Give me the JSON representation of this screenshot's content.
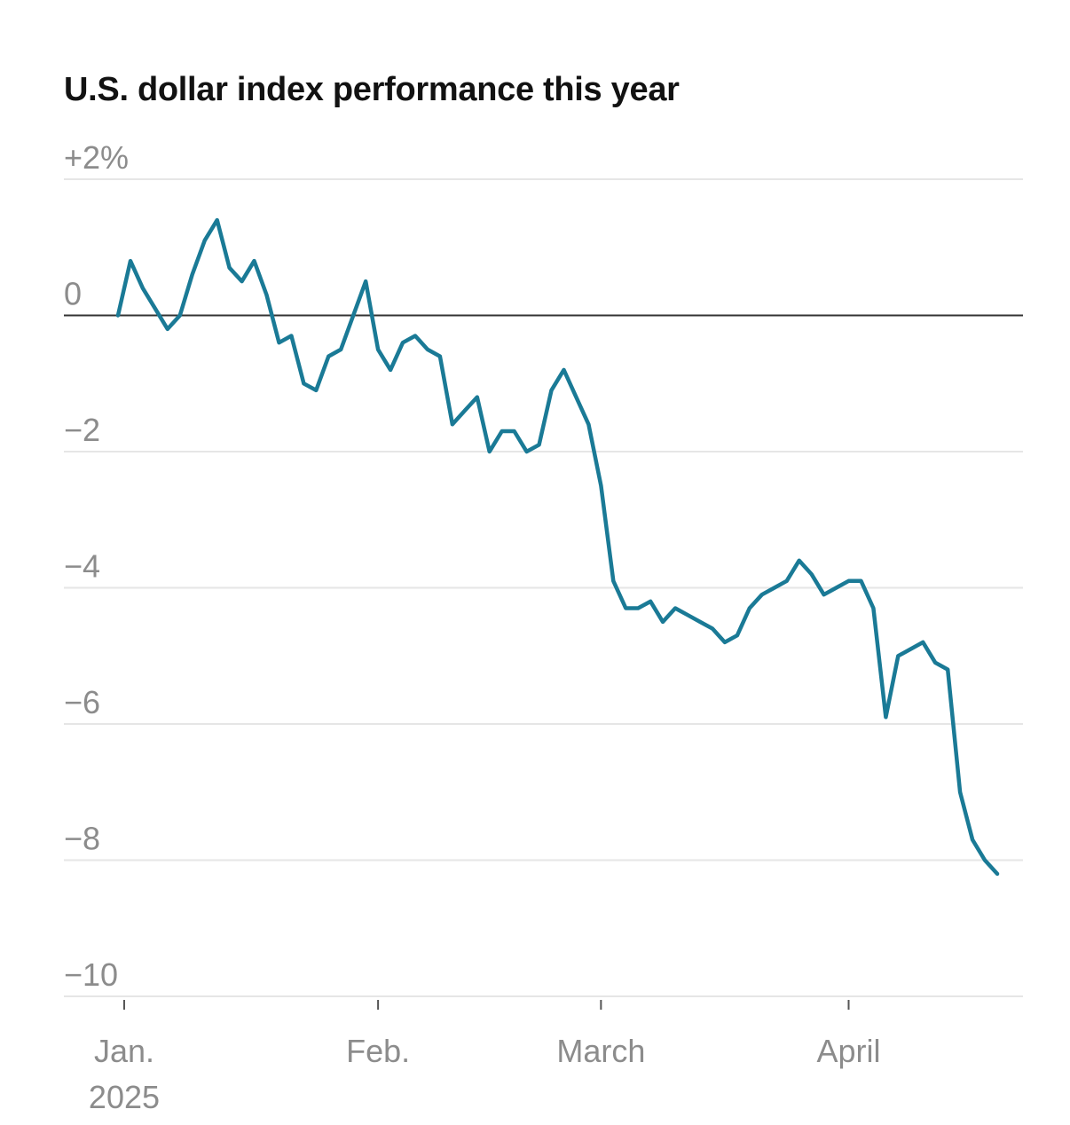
{
  "chart_data": {
    "type": "line",
    "title": "U.S. dollar index performance this year",
    "xlabel": "",
    "ylabel": "",
    "ylim": [
      -10,
      2
    ],
    "y_ticks": [
      {
        "value": 2,
        "label": "+2%"
      },
      {
        "value": 0,
        "label": "0"
      },
      {
        "value": -2,
        "label": "−2"
      },
      {
        "value": -4,
        "label": "−4"
      },
      {
        "value": -6,
        "label": "−6"
      },
      {
        "value": -8,
        "label": "−8"
      },
      {
        "value": -10,
        "label": "−10"
      }
    ],
    "x_ticks": [
      {
        "index": 0.5,
        "label": "Jan.",
        "sublabel": "2025"
      },
      {
        "index": 21,
        "label": "Feb.",
        "sublabel": ""
      },
      {
        "index": 39,
        "label": "March",
        "sublabel": ""
      },
      {
        "index": 59,
        "label": "April",
        "sublabel": ""
      }
    ],
    "grid": true,
    "zero_line": true,
    "series": [
      {
        "name": "U.S. dollar index",
        "color": "#1a7a96",
        "values": [
          0,
          0.8,
          0.4,
          0.1,
          -0.2,
          0.0,
          0.6,
          1.1,
          1.4,
          0.7,
          0.5,
          0.8,
          0.3,
          -0.4,
          -0.3,
          -1.0,
          -1.1,
          -0.6,
          -0.5,
          0.0,
          0.5,
          -0.5,
          -0.8,
          -0.4,
          -0.3,
          -0.5,
          -0.6,
          -1.6,
          -1.4,
          -1.2,
          -2.0,
          -1.7,
          -1.7,
          -2.0,
          -1.9,
          -1.1,
          -0.8,
          -1.2,
          -1.6,
          -2.5,
          -3.9,
          -4.3,
          -4.3,
          -4.2,
          -4.5,
          -4.3,
          -4.4,
          -4.5,
          -4.6,
          -4.8,
          -4.7,
          -4.3,
          -4.1,
          -4.0,
          -3.9,
          -3.6,
          -3.8,
          -4.1,
          -4.0,
          -3.9,
          -3.9,
          -4.3,
          -5.9,
          -5.0,
          -4.9,
          -4.8,
          -5.1,
          -5.2,
          -7.0,
          -7.7,
          -8.0,
          -8.2
        ]
      }
    ]
  }
}
